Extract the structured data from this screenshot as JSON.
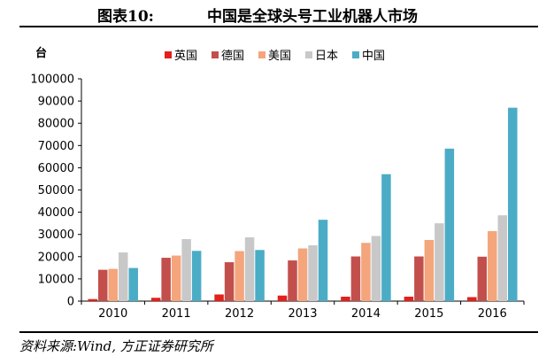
{
  "figure": {
    "label": "图表10:",
    "title": "中国是全球头号工业机器人市场",
    "source": "资料来源:Wind, 方正证券研究所"
  },
  "chart_data": {
    "type": "bar",
    "ylabel": "台",
    "categories": [
      "2010",
      "2011",
      "2012",
      "2013",
      "2014",
      "2015",
      "2016"
    ],
    "ylim": [
      0,
      100000
    ],
    "yticks": [
      0,
      10000,
      20000,
      30000,
      40000,
      50000,
      60000,
      70000,
      80000,
      90000,
      100000
    ],
    "grid": false,
    "legend_position": "top-center",
    "series": [
      {
        "name": "英国",
        "color": "#e3201b",
        "values": [
          900,
          1500,
          3000,
          2500,
          2000,
          2000,
          1800
        ]
      },
      {
        "name": "德国",
        "color": "#c24f4c",
        "values": [
          14100,
          19500,
          17500,
          18300,
          20100,
          20100,
          20000
        ]
      },
      {
        "name": "美国",
        "color": "#f4a57c",
        "values": [
          14500,
          20500,
          22500,
          23700,
          26200,
          27500,
          31500
        ]
      },
      {
        "name": "日本",
        "color": "#c8c8c8",
        "values": [
          21900,
          27900,
          28700,
          25100,
          29300,
          35000,
          38600
        ]
      },
      {
        "name": "中国",
        "color": "#4bacc6",
        "values": [
          14900,
          22600,
          23000,
          36600,
          57100,
          68600,
          87000
        ]
      }
    ]
  }
}
